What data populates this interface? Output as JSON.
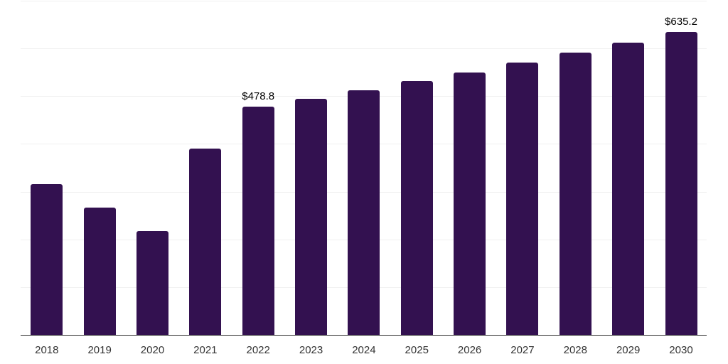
{
  "chart_data": {
    "type": "bar",
    "title": "",
    "xlabel": "",
    "ylabel": "",
    "categories": [
      "2018",
      "2019",
      "2020",
      "2021",
      "2022",
      "2023",
      "2024",
      "2025",
      "2026",
      "2027",
      "2028",
      "2029",
      "2030"
    ],
    "values": [
      316,
      267,
      217,
      390,
      478.8,
      494,
      512,
      532,
      550,
      570,
      592,
      612,
      635.2
    ],
    "ylim": [
      0,
      700
    ],
    "gridline_step": 100,
    "grid": "horizontal",
    "legend_position": "none",
    "annotations": [
      {
        "index": 4,
        "label": "$478.8"
      },
      {
        "index": 12,
        "label": "$635.2"
      }
    ],
    "colors": {
      "bar": "#331150",
      "gridline": "#f0f0f0",
      "axis_line": "#2b2b2b",
      "tick_label": "#333333",
      "value_label": "#000000",
      "background": "#ffffff"
    }
  }
}
